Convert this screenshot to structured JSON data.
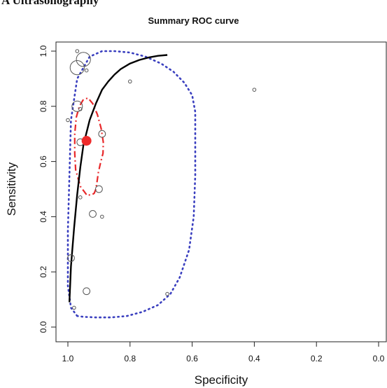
{
  "panel_label": "A Ultrasonography",
  "chart_data": {
    "type": "scatter",
    "title": "Summary ROC curve",
    "xlabel": "Specificity",
    "ylabel": "Sensitivity",
    "xlim": [
      1.0,
      0.0
    ],
    "ylim": [
      0.0,
      1.0
    ],
    "x_axis_reversed": true,
    "x_ticks": [
      "1.0",
      "0.8",
      "0.6",
      "0.4",
      "0.2",
      "0.0"
    ],
    "y_ticks": [
      "0.0",
      "0.2",
      "0.4",
      "0.6",
      "0.8",
      "1.0"
    ],
    "grid": false,
    "studies": [
      {
        "specificity": 0.97,
        "sensitivity": 1.0,
        "weight": 1
      },
      {
        "specificity": 0.95,
        "sensitivity": 0.97,
        "weight": 4
      },
      {
        "specificity": 0.97,
        "sensitivity": 0.94,
        "weight": 4
      },
      {
        "specificity": 0.94,
        "sensitivity": 0.93,
        "weight": 1
      },
      {
        "specificity": 0.8,
        "sensitivity": 0.89,
        "weight": 1
      },
      {
        "specificity": 0.4,
        "sensitivity": 0.86,
        "weight": 1
      },
      {
        "specificity": 0.97,
        "sensitivity": 0.8,
        "weight": 3
      },
      {
        "specificity": 0.96,
        "sensitivity": 0.79,
        "weight": 1
      },
      {
        "specificity": 1.0,
        "sensitivity": 0.75,
        "weight": 1
      },
      {
        "specificity": 0.89,
        "sensitivity": 0.7,
        "weight": 2
      },
      {
        "specificity": 0.96,
        "sensitivity": 0.67,
        "weight": 2
      },
      {
        "specificity": 0.9,
        "sensitivity": 0.5,
        "weight": 2
      },
      {
        "specificity": 0.96,
        "sensitivity": 0.47,
        "weight": 1
      },
      {
        "specificity": 0.92,
        "sensitivity": 0.41,
        "weight": 2
      },
      {
        "specificity": 0.89,
        "sensitivity": 0.4,
        "weight": 1
      },
      {
        "specificity": 0.99,
        "sensitivity": 0.25,
        "weight": 2
      },
      {
        "specificity": 0.94,
        "sensitivity": 0.13,
        "weight": 2
      },
      {
        "specificity": 0.68,
        "sensitivity": 0.12,
        "weight": 1
      },
      {
        "specificity": 0.98,
        "sensitivity": 0.07,
        "weight": 1
      }
    ],
    "summary_point": {
      "specificity": 0.94,
      "sensitivity": 0.675,
      "color": "#ee2b2b"
    },
    "sroc_curve": {
      "specificity": [
        0.995,
        0.99,
        0.98,
        0.97,
        0.96,
        0.95,
        0.93,
        0.91,
        0.89,
        0.87,
        0.85,
        0.83,
        0.8,
        0.77,
        0.74,
        0.71,
        0.68
      ],
      "sensitivity": [
        0.09,
        0.22,
        0.36,
        0.48,
        0.58,
        0.66,
        0.75,
        0.81,
        0.86,
        0.89,
        0.915,
        0.935,
        0.955,
        0.968,
        0.977,
        0.983,
        0.986
      ],
      "color": "#000000"
    },
    "confidence_region": {
      "specificity": [
        0.94,
        0.96,
        0.975,
        0.978,
        0.978,
        0.973,
        0.963,
        0.95,
        0.935,
        0.92,
        0.905,
        0.893,
        0.886,
        0.887,
        0.894,
        0.902,
        0.907,
        0.91,
        0.915,
        0.925,
        0.94
      ],
      "sensitivity": [
        0.48,
        0.51,
        0.57,
        0.63,
        0.7,
        0.76,
        0.8,
        0.825,
        0.83,
        0.81,
        0.77,
        0.72,
        0.67,
        0.63,
        0.6,
        0.56,
        0.52,
        0.5,
        0.485,
        0.478,
        0.48
      ],
      "color": "#e8282a"
    },
    "prediction_region": {
      "specificity": [
        0.97,
        0.99,
        1.0,
        1.0,
        0.995,
        0.99,
        0.97,
        0.93,
        0.89,
        0.85,
        0.8,
        0.75,
        0.7,
        0.66,
        0.625,
        0.6,
        0.59,
        0.59,
        0.59,
        0.595,
        0.61,
        0.64,
        0.67,
        0.71,
        0.76,
        0.81,
        0.86,
        0.91,
        0.95,
        0.97
      ],
      "sensitivity": [
        0.04,
        0.07,
        0.15,
        0.35,
        0.55,
        0.75,
        0.9,
        0.98,
        1.0,
        1.0,
        0.995,
        0.98,
        0.955,
        0.925,
        0.885,
        0.84,
        0.78,
        0.7,
        0.55,
        0.4,
        0.28,
        0.18,
        0.12,
        0.08,
        0.055,
        0.04,
        0.035,
        0.035,
        0.037,
        0.04
      ],
      "color": "#3a3fbf"
    }
  }
}
